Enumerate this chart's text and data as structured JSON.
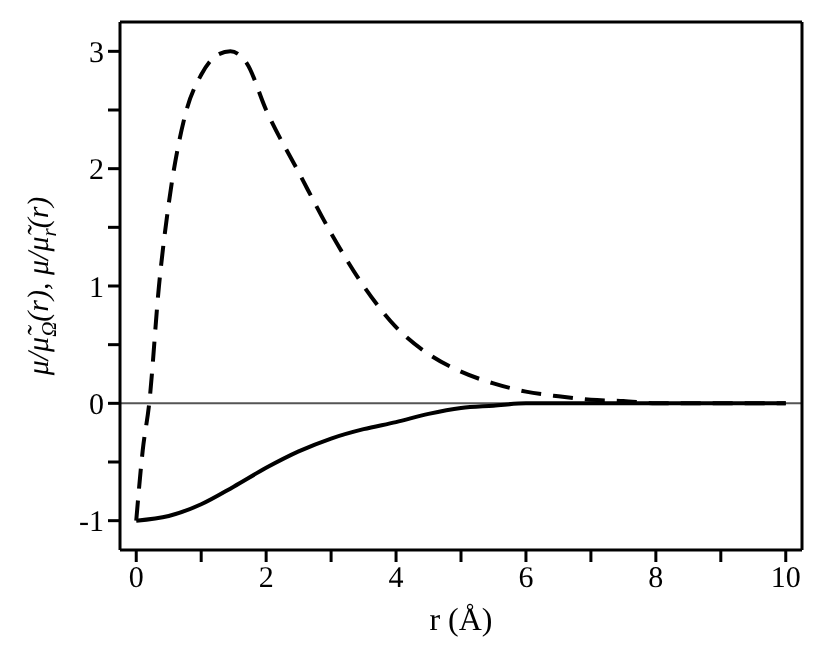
{
  "chart_data": {
    "type": "line",
    "xlabel": "r   (Å)",
    "ylabel": "μ/μ̃$_{Ω}$(r), μ/μ̃$_{r}$(r)",
    "xlim": [
      -0.25,
      10.25
    ],
    "xticks": [
      0,
      {
        "value": 1,
        "label": null
      },
      2,
      {
        "value": 3,
        "label": null
      },
      4,
      {
        "value": 5,
        "label": null
      },
      6,
      {
        "value": 7,
        "label": null
      },
      8,
      {
        "value": 9,
        "label": null
      },
      10
    ],
    "ylim": [
      -1.25,
      3.25
    ],
    "yticks": [
      {
        "value": -1,
        "label": "-1"
      },
      {
        "value": -0.5,
        "label": null
      },
      0,
      {
        "value": 0.5,
        "label": null
      },
      1,
      {
        "value": 1.5,
        "label": null
      },
      2,
      {
        "value": 2.5,
        "label": null
      },
      3
    ],
    "grid": false,
    "marker": "none",
    "ref_lines": [
      {
        "axis": "y",
        "value": 0,
        "label": null,
        "color": "#555555"
      }
    ],
    "series": [
      {
        "color": "#000000",
        "line_style": "dashed",
        "x": [
          0,
          0.1,
          0.2,
          0.35,
          0.5,
          0.75,
          1,
          1.25,
          1.45,
          1.7,
          2,
          2.5,
          3,
          3.5,
          4,
          4.5,
          5,
          5.5,
          6,
          6.5,
          7,
          7.5,
          8,
          9,
          10
        ],
        "values": [
          -1,
          -0.4,
          0,
          1,
          1.7,
          2.45,
          2.8,
          2.97,
          3.0,
          2.9,
          2.5,
          1.97,
          1.45,
          1.0,
          0.65,
          0.42,
          0.27,
          0.17,
          0.1,
          0.06,
          0.03,
          0.02,
          0,
          0,
          0
        ]
      },
      {
        "color": "#000000",
        "line_style": "solid",
        "x": [
          0,
          0.5,
          1,
          1.5,
          2,
          2.5,
          3,
          3.5,
          4,
          4.5,
          5,
          5.5,
          6,
          7,
          8,
          10
        ],
        "values": [
          -1,
          -0.96,
          -0.86,
          -0.71,
          -0.55,
          -0.41,
          -0.3,
          -0.22,
          -0.16,
          -0.09,
          -0.04,
          -0.02,
          0,
          0,
          0,
          0
        ]
      }
    ]
  }
}
